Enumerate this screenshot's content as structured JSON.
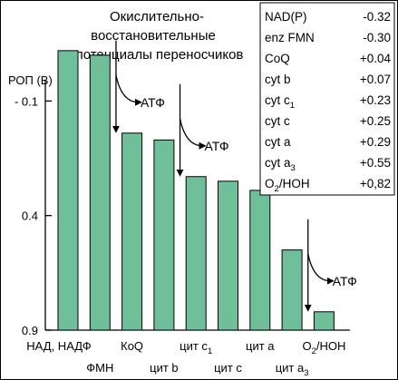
{
  "title_lines": [
    "Окислительно-",
    "восстановительные",
    "потенциалы переносчиков"
  ],
  "chart_data": {
    "type": "bar",
    "ylabel": "РОП (В)",
    "y_ticks": [
      {
        "value": -0.1,
        "label": "- 0.1"
      },
      {
        "value": 0.4,
        "label": "0.4"
      },
      {
        "value": 0.9,
        "label": "0.9"
      }
    ],
    "ylim": [
      -0.45,
      0.9
    ],
    "y_inverted": true,
    "bar_color": "#6fbf9a",
    "categories": [
      "НАД, НАДФ",
      "ФМН",
      "КоQ",
      "цит b",
      "цит c1",
      "цит c",
      "цит a",
      "цит a3",
      "O2/HOH"
    ],
    "values": [
      -0.32,
      -0.3,
      0.04,
      0.07,
      0.23,
      0.25,
      0.29,
      0.55,
      0.82
    ],
    "x_tick_labels": [
      {
        "main": "НАД, НАДФ",
        "sub": ""
      },
      {
        "main": "ФМН",
        "sub": ""
      },
      {
        "main": "КоQ",
        "sub": ""
      },
      {
        "main": "цит b",
        "sub": ""
      },
      {
        "main": "цит c",
        "sub": "1"
      },
      {
        "main": "цит c",
        "sub": ""
      },
      {
        "main": "цит a",
        "sub": ""
      },
      {
        "main": "цит a",
        "sub": "3"
      },
      {
        "main": "O",
        "sub": "2",
        "rest": "/HOH"
      }
    ],
    "atp_label": "АТФ",
    "atp_sites": [
      {
        "between": [
          1,
          2
        ]
      },
      {
        "between": [
          3,
          4
        ]
      },
      {
        "between": [
          7,
          8
        ]
      }
    ]
  },
  "legend": [
    {
      "name": "NAD(P)",
      "sub": "",
      "value": "-0.32"
    },
    {
      "name": "enz FMN",
      "sub": "",
      "value": "-0.30"
    },
    {
      "name": "CoQ",
      "sub": "",
      "value": "+0.04"
    },
    {
      "name": "cyt b",
      "sub": "",
      "value": "+0.07"
    },
    {
      "name": "cyt c",
      "sub": "1",
      "value": "+0.23"
    },
    {
      "name": "cyt c",
      "sub": "",
      "value": "+0.25"
    },
    {
      "name": "cyt a",
      "sub": "",
      "value": "+0.29"
    },
    {
      "name": "cyt a",
      "sub": "3",
      "value": "+0.55"
    },
    {
      "name": "O",
      "sub": "2",
      "rest": "/HOH",
      "value": "+0,82"
    }
  ]
}
